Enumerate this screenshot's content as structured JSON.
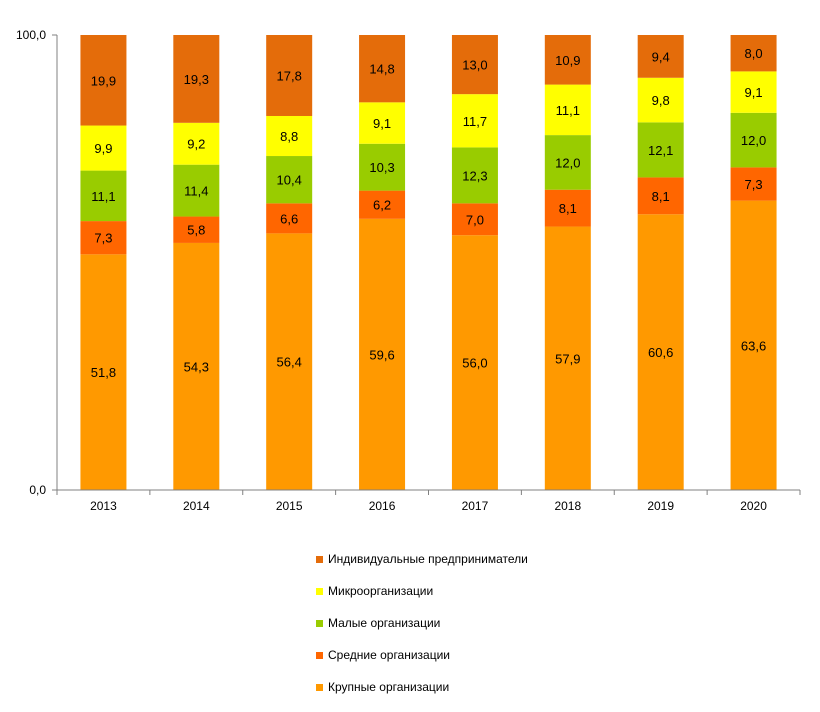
{
  "chart_data": {
    "type": "bar",
    "stacked": true,
    "percent": true,
    "categories": [
      "2013",
      "2014",
      "2015",
      "2016",
      "2017",
      "2018",
      "2019",
      "2020"
    ],
    "y_tick_labels": [
      "0,0",
      "100,0"
    ],
    "ylim": [
      0,
      100
    ],
    "grid": false,
    "legend_position": "bottom",
    "series": [
      {
        "name": "Крупные организации",
        "color": "#ff9900",
        "values": [
          51.8,
          54.3,
          56.4,
          59.6,
          56.0,
          57.9,
          60.6,
          63.6
        ],
        "labels": [
          "51,8",
          "54,3",
          "56,4",
          "59,6",
          "56,0",
          "57,9",
          "60,6",
          "63,6"
        ]
      },
      {
        "name": "Средние организации",
        "color": "#ff6600",
        "values": [
          7.3,
          5.8,
          6.6,
          6.2,
          7.0,
          8.1,
          8.1,
          7.3
        ],
        "labels": [
          "7,3",
          "5,8",
          "6,6",
          "6,2",
          "7,0",
          "8,1",
          "8,1",
          "7,3"
        ]
      },
      {
        "name": "Малые организации",
        "color": "#99cc00",
        "values": [
          11.1,
          11.4,
          10.4,
          10.3,
          12.3,
          12.0,
          12.1,
          12.0
        ],
        "labels": [
          "11,1",
          "11,4",
          "10,4",
          "10,3",
          "12,3",
          "12,0",
          "12,1",
          "12,0"
        ]
      },
      {
        "name": "Микроорганизации",
        "color": "#ffff00",
        "values": [
          9.9,
          9.2,
          8.8,
          9.1,
          11.7,
          11.1,
          9.8,
          9.1
        ],
        "labels": [
          "9,9",
          "9,2",
          "8,8",
          "9,1",
          "11,7",
          "11,1",
          "9,8",
          "9,1"
        ]
      },
      {
        "name": "Индивидуальные предприниматели",
        "color": "#e46c0a",
        "values": [
          19.9,
          19.3,
          17.8,
          14.8,
          13.0,
          10.9,
          9.4,
          8.0
        ],
        "labels": [
          "19,9",
          "19,3",
          "17,8",
          "14,8",
          "13,0",
          "10,9",
          "9,4",
          "8,0"
        ]
      }
    ],
    "legend_order": [
      "Индивидуальные предприниматели",
      "Микроорганизации",
      "Малые организации",
      "Средние организации",
      "Крупные организации"
    ]
  }
}
